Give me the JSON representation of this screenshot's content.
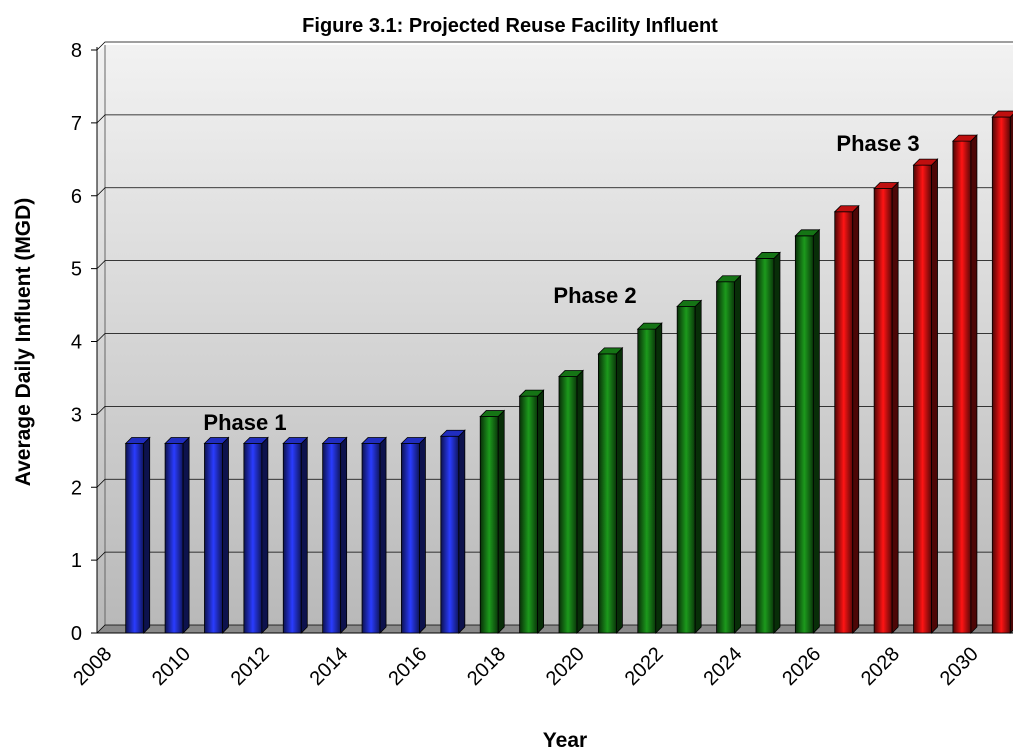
{
  "chart_data": {
    "type": "bar",
    "title": "Figure 3.1: Projected Reuse Facility Influent",
    "x_label": "Year",
    "y_label": "Average Daily Influent (MGD)",
    "categories": [
      "2008",
      null,
      "2010",
      null,
      "2012",
      null,
      "2014",
      null,
      "2016",
      null,
      "2018",
      null,
      "2020",
      null,
      "2022",
      null,
      "2024",
      null,
      "2026",
      null,
      "2028",
      null,
      "2030"
    ],
    "values": [
      2.6,
      2.6,
      2.6,
      2.6,
      2.6,
      2.6,
      2.6,
      2.6,
      2.7,
      2.97,
      3.25,
      3.52,
      3.83,
      4.17,
      4.48,
      4.82,
      5.14,
      5.45,
      5.78,
      6.1,
      6.42,
      6.75,
      7.08
    ],
    "colors": [
      "#2a3cff",
      "#2a3cff",
      "#2a3cff",
      "#2a3cff",
      "#2a3cff",
      "#2a3cff",
      "#2a3cff",
      "#2a3cff",
      "#2a3cff",
      "#1c9a1c",
      "#1c9a1c",
      "#1c9a1c",
      "#1c9a1c",
      "#1c9a1c",
      "#1c9a1c",
      "#1c9a1c",
      "#1c9a1c",
      "#1c9a1c",
      "#ff1414",
      "#ff1414",
      "#ff1414",
      "#ff1414",
      "#ff1414"
    ],
    "annotations": [
      "Phase 1",
      "Phase 2",
      "Phase 3"
    ],
    "ylim": [
      0,
      8
    ],
    "yticks": [
      0,
      1,
      2,
      3,
      4,
      5,
      6,
      7,
      8
    ],
    "grid": true
  }
}
